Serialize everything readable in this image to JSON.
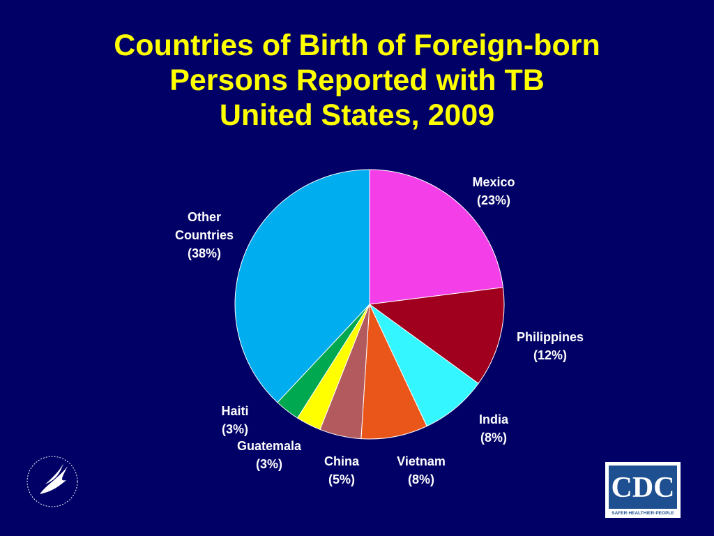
{
  "chart_data": {
    "type": "pie",
    "title": "Countries of Birth of Foreign-born Persons Reported with TB",
    "subtitle": "United States, 2009",
    "categories": [
      "Mexico",
      "Philippines",
      "India",
      "Vietnam",
      "China",
      "Guatemala",
      "Haiti",
      "Other Countries"
    ],
    "values": [
      23,
      12,
      8,
      8,
      5,
      3,
      3,
      38
    ],
    "value_labels": [
      "(23%)",
      "(12%)",
      "(8%)",
      "(8%)",
      "(5%)",
      "(3%)",
      "(3%)",
      "(38%)"
    ],
    "colors": [
      "#f43ee8",
      "#a0001e",
      "#33f6ff",
      "#ea561a",
      "#b25a5e",
      "#ffff00",
      "#00a84f",
      "#00adef"
    ]
  },
  "logos": {
    "cdc": "CDC",
    "cdc_tagline": "SAFER·HEALTHIER·PEOPLE"
  }
}
